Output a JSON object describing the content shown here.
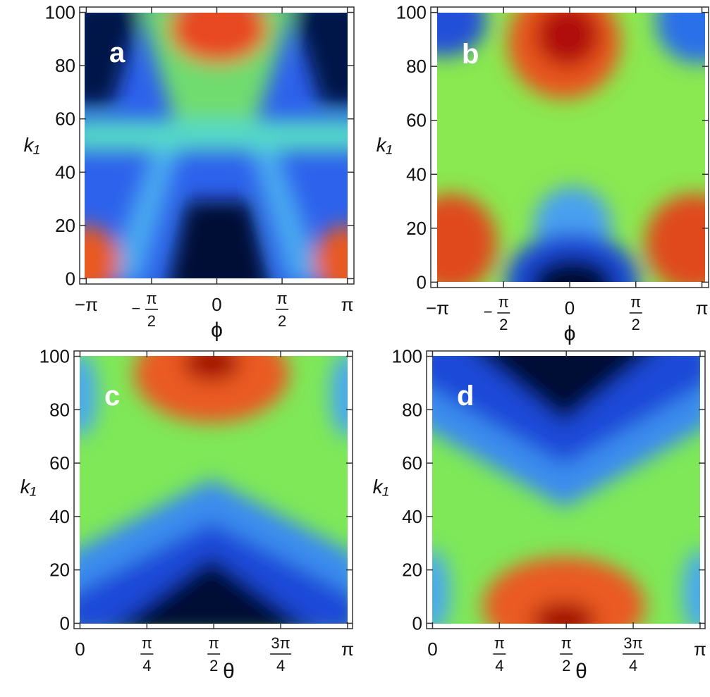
{
  "chart_data": [
    {
      "type": "heatmap",
      "panel_label": "a",
      "x_label": "ϕ",
      "y_label": "k₁",
      "xlim": [
        -3.3,
        3.3
      ],
      "ylim": [
        -2,
        102
      ],
      "xticks": [
        {
          "value": -3.14159,
          "label": "−π"
        },
        {
          "value": -1.5708,
          "label": "−π/2"
        },
        0,
        {
          "value": 1.5708,
          "label": "π/2"
        },
        {
          "value": 3.14159,
          "label": "π"
        }
      ],
      "yticks": [
        0,
        20,
        40,
        60,
        80,
        100
      ]
    },
    {
      "type": "heatmap",
      "panel_label": "b",
      "x_label": "ϕ",
      "y_label": "k₁",
      "xlim": [
        -3.3,
        3.3
      ],
      "ylim": [
        -2,
        102
      ],
      "xticks": [
        {
          "value": -3.14159,
          "label": "−π"
        },
        {
          "value": -1.5708,
          "label": "−π/2"
        },
        0,
        {
          "value": 1.5708,
          "label": "π/2"
        },
        {
          "value": 3.14159,
          "label": "π"
        }
      ],
      "yticks": [
        0,
        20,
        40,
        60,
        80,
        100
      ]
    },
    {
      "type": "heatmap",
      "panel_label": "c",
      "x_label": "θ",
      "y_label": "k₁",
      "xlim": [
        -0.07,
        3.2
      ],
      "ylim": [
        -2,
        102
      ],
      "xticks": [
        0,
        {
          "value": 0.7854,
          "label": "π/4"
        },
        {
          "value": 1.5708,
          "label": "π/2"
        },
        {
          "value": 2.3562,
          "label": "3π/4"
        },
        {
          "value": 3.14159,
          "label": "π"
        }
      ],
      "yticks": [
        0,
        20,
        40,
        60,
        80,
        100
      ]
    },
    {
      "type": "heatmap",
      "panel_label": "d",
      "x_label": "θ",
      "y_label": "k₁",
      "xlim": [
        -0.07,
        3.2
      ],
      "ylim": [
        -2,
        102
      ],
      "xticks": [
        0,
        {
          "value": 0.7854,
          "label": "π/4"
        },
        {
          "value": 1.5708,
          "label": "π/2"
        },
        {
          "value": 2.3562,
          "label": "3π/4"
        },
        {
          "value": 3.14159,
          "label": "π"
        }
      ],
      "yticks": [
        0,
        20,
        40,
        60,
        80,
        100
      ]
    }
  ]
}
